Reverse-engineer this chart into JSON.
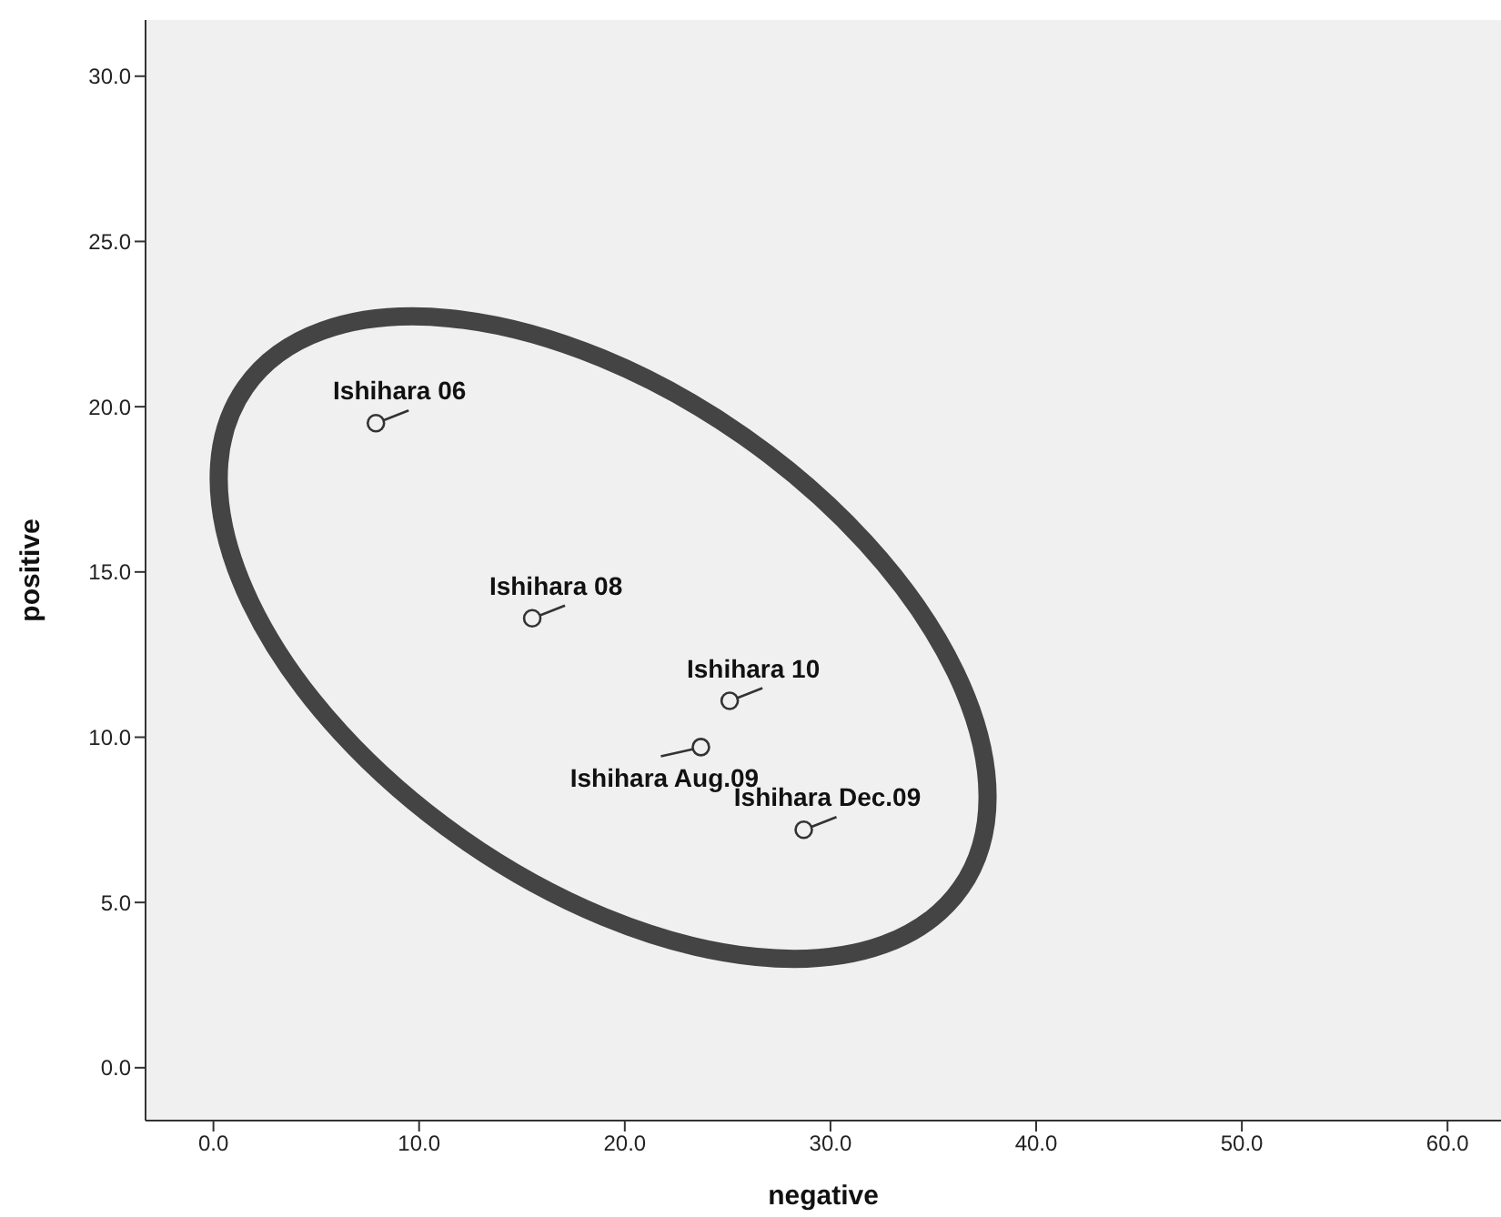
{
  "chart_data": {
    "type": "scatter",
    "xlabel": "negative",
    "ylabel": "positive",
    "x": [
      7.9,
      15.5,
      25.1,
      23.7,
      28.7
    ],
    "series": [
      {
        "color": "#333333",
        "values": [
          19.5,
          13.6,
          11.1,
          9.7,
          7.2
        ]
      }
    ],
    "marker": "circle",
    "xlim": [
      -3.3,
      62.6
    ],
    "xticks": [
      {
        "value": 0,
        "label": "0.0"
      },
      {
        "value": 10,
        "label": "10.0"
      },
      {
        "value": 20,
        "label": "20.0"
      },
      {
        "value": 30,
        "label": "30.0"
      },
      {
        "value": 40,
        "label": "40.0"
      },
      {
        "value": 50,
        "label": "50.0"
      },
      {
        "value": 60,
        "label": "60.0"
      }
    ],
    "ylim": [
      -1.6,
      31.7
    ],
    "yticks": [
      {
        "value": 0,
        "label": "0.0"
      },
      {
        "value": 5,
        "label": "5.0"
      },
      {
        "value": 10,
        "label": "10.0"
      },
      {
        "value": 15,
        "label": "15.0"
      },
      {
        "value": 20,
        "label": "20.0"
      },
      {
        "value": 25,
        "label": "25.0"
      },
      {
        "value": 30,
        "label": "30.0"
      }
    ],
    "annotations": [
      {
        "text": "Ishihara 06",
        "x": 7.9,
        "y": 19.5
      },
      {
        "text": "Ishihara 08",
        "x": 15.5,
        "y": 13.6
      },
      {
        "text": "Ishihara 10",
        "x": 25.1,
        "y": 11.1
      },
      {
        "text": "Ishihara Aug.09",
        "x": 23.7,
        "y": 9.7
      },
      {
        "text": "Ishihara Dec.09",
        "x": 28.7,
        "y": 7.2
      }
    ]
  }
}
